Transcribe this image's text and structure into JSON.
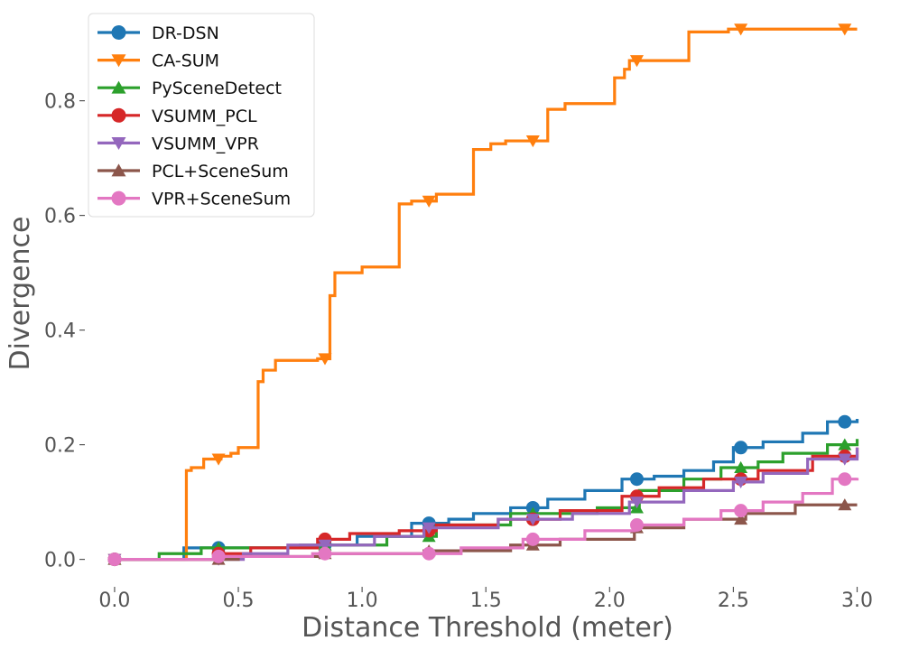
{
  "chart_data": {
    "type": "line",
    "title": "",
    "xlabel": "Distance Threshold (meter)",
    "ylabel": "Divergence",
    "xlim": [
      -0.08,
      3.02
    ],
    "ylim": [
      -0.04,
      0.96
    ],
    "xticks": [
      0.0,
      0.5,
      1.0,
      1.5,
      2.0,
      2.5,
      3.0
    ],
    "xtick_labels": [
      "0.0",
      "0.5",
      "1.0",
      "1.5",
      "2.0",
      "2.5",
      "3.0"
    ],
    "yticks": [
      0.0,
      0.2,
      0.4,
      0.6,
      0.8
    ],
    "ytick_labels": [
      "0.0",
      "0.2",
      "0.4",
      "0.6",
      "0.8"
    ],
    "grid": false,
    "legend_position": "top-left",
    "line_shape": "step-post",
    "marker_x": [
      0.0,
      0.42,
      0.85,
      1.27,
      1.69,
      2.11,
      2.53,
      2.95
    ],
    "series": [
      {
        "name": "DR-DSN",
        "color": "#1f77b4",
        "marker": "circle",
        "x": [
          0.0,
          0.28,
          0.8,
          0.98,
          1.2,
          1.35,
          1.45,
          1.6,
          1.75,
          1.9,
          2.05,
          2.18,
          2.3,
          2.42,
          2.5,
          2.62,
          2.78,
          2.88,
          3.0
        ],
        "y": [
          0.0,
          0.02,
          0.025,
          0.04,
          0.063,
          0.07,
          0.08,
          0.09,
          0.105,
          0.12,
          0.14,
          0.145,
          0.155,
          0.17,
          0.195,
          0.205,
          0.22,
          0.24,
          0.245
        ]
      },
      {
        "name": "CA-SUM",
        "color": "#ff7f0e",
        "marker": "triangle-down",
        "x": [
          0.0,
          0.29,
          0.31,
          0.36,
          0.43,
          0.47,
          0.5,
          0.58,
          0.6,
          0.65,
          0.82,
          0.87,
          0.89,
          1.0,
          1.15,
          1.17,
          1.2,
          1.3,
          1.45,
          1.52,
          1.58,
          1.75,
          1.82,
          2.02,
          2.06,
          2.08,
          2.1,
          2.32,
          2.48,
          3.0
        ],
        "y": [
          0.0,
          0.155,
          0.16,
          0.175,
          0.18,
          0.185,
          0.195,
          0.31,
          0.33,
          0.347,
          0.35,
          0.46,
          0.5,
          0.51,
          0.62,
          0.62,
          0.625,
          0.637,
          0.715,
          0.725,
          0.73,
          0.785,
          0.795,
          0.84,
          0.855,
          0.87,
          0.87,
          0.92,
          0.925,
          0.925
        ]
      },
      {
        "name": "PySceneDetect",
        "color": "#2ca02c",
        "marker": "triangle-up",
        "x": [
          0.0,
          0.18,
          0.35,
          0.75,
          1.1,
          1.3,
          1.6,
          1.95,
          2.12,
          2.3,
          2.45,
          2.6,
          2.7,
          2.88,
          3.0
        ],
        "y": [
          0.0,
          0.01,
          0.02,
          0.025,
          0.04,
          0.06,
          0.08,
          0.09,
          0.12,
          0.14,
          0.16,
          0.17,
          0.185,
          0.2,
          0.21
        ]
      },
      {
        "name": "VSUMM_PCL",
        "color": "#d62728",
        "marker": "circle",
        "x": [
          0.0,
          0.4,
          0.55,
          0.82,
          0.95,
          1.15,
          1.3,
          1.55,
          1.8,
          2.05,
          2.2,
          2.38,
          2.6,
          2.82,
          3.0
        ],
        "y": [
          0.0,
          0.01,
          0.02,
          0.035,
          0.045,
          0.05,
          0.06,
          0.07,
          0.085,
          0.11,
          0.125,
          0.14,
          0.155,
          0.18,
          0.195
        ]
      },
      {
        "name": "VSUMM_VPR",
        "color": "#9467bd",
        "marker": "triangle-down",
        "x": [
          0.0,
          0.52,
          0.7,
          1.05,
          1.25,
          1.55,
          1.85,
          2.08,
          2.3,
          2.5,
          2.62,
          2.8,
          3.0
        ],
        "y": [
          0.0,
          0.01,
          0.025,
          0.04,
          0.055,
          0.07,
          0.08,
          0.1,
          0.12,
          0.135,
          0.15,
          0.175,
          0.195
        ]
      },
      {
        "name": "PCL+SceneSum",
        "color": "#8c564b",
        "marker": "triangle-up",
        "x": [
          0.0,
          0.5,
          0.85,
          1.25,
          1.6,
          1.8,
          2.1,
          2.3,
          2.55,
          2.75,
          3.0
        ],
        "y": [
          0.0,
          0.005,
          0.01,
          0.015,
          0.025,
          0.035,
          0.055,
          0.07,
          0.08,
          0.095,
          0.095
        ]
      },
      {
        "name": "VPR+SceneSum",
        "color": "#e377c2",
        "marker": "circle",
        "x": [
          0.0,
          0.4,
          0.8,
          1.4,
          1.65,
          1.9,
          2.1,
          2.3,
          2.45,
          2.62,
          2.78,
          2.9,
          3.0
        ],
        "y": [
          0.0,
          0.005,
          0.01,
          0.02,
          0.035,
          0.05,
          0.06,
          0.07,
          0.085,
          0.1,
          0.115,
          0.14,
          0.142
        ]
      }
    ]
  }
}
